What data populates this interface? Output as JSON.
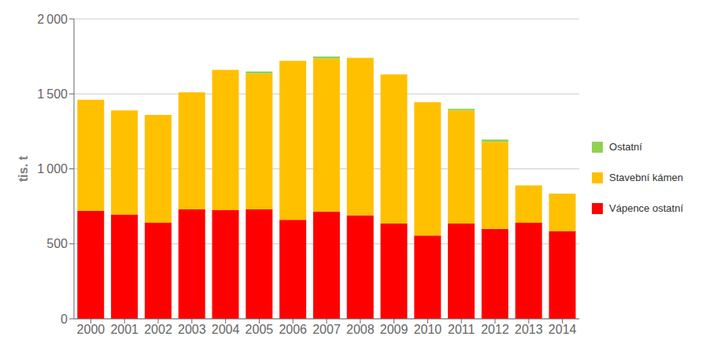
{
  "chart_data": {
    "type": "bar",
    "stacked": true,
    "ylabel": "tis. t",
    "categories": [
      "2000",
      "2001",
      "2002",
      "2003",
      "2004",
      "2005",
      "2006",
      "2007",
      "2008",
      "2009",
      "2010",
      "2011",
      "2012",
      "2013",
      "2014"
    ],
    "series": [
      {
        "name": "Vápence ostatní",
        "color": "#ff0000",
        "values": [
          720,
          695,
          640,
          730,
          725,
          730,
          660,
          715,
          690,
          635,
          555,
          635,
          600,
          640,
          585
        ]
      },
      {
        "name": "Stavební kámen",
        "color": "#ffc000",
        "values": [
          740,
          695,
          720,
          780,
          935,
          905,
          1060,
          1020,
          1050,
          995,
          890,
          755,
          580,
          250,
          250
        ]
      },
      {
        "name": "Ostatní",
        "color": "#92d050",
        "values": [
          0,
          0,
          0,
          0,
          0,
          15,
          0,
          15,
          0,
          0,
          0,
          10,
          15,
          0,
          0
        ]
      }
    ],
    "ylim": [
      0,
      2000
    ],
    "yticks": [
      0,
      500,
      {
        "value": 1000,
        "label": "1 000"
      },
      {
        "value": 1500,
        "label": "1 500"
      },
      {
        "value": 2000,
        "label": "2 000"
      }
    ],
    "grid": true,
    "legend": "right"
  }
}
